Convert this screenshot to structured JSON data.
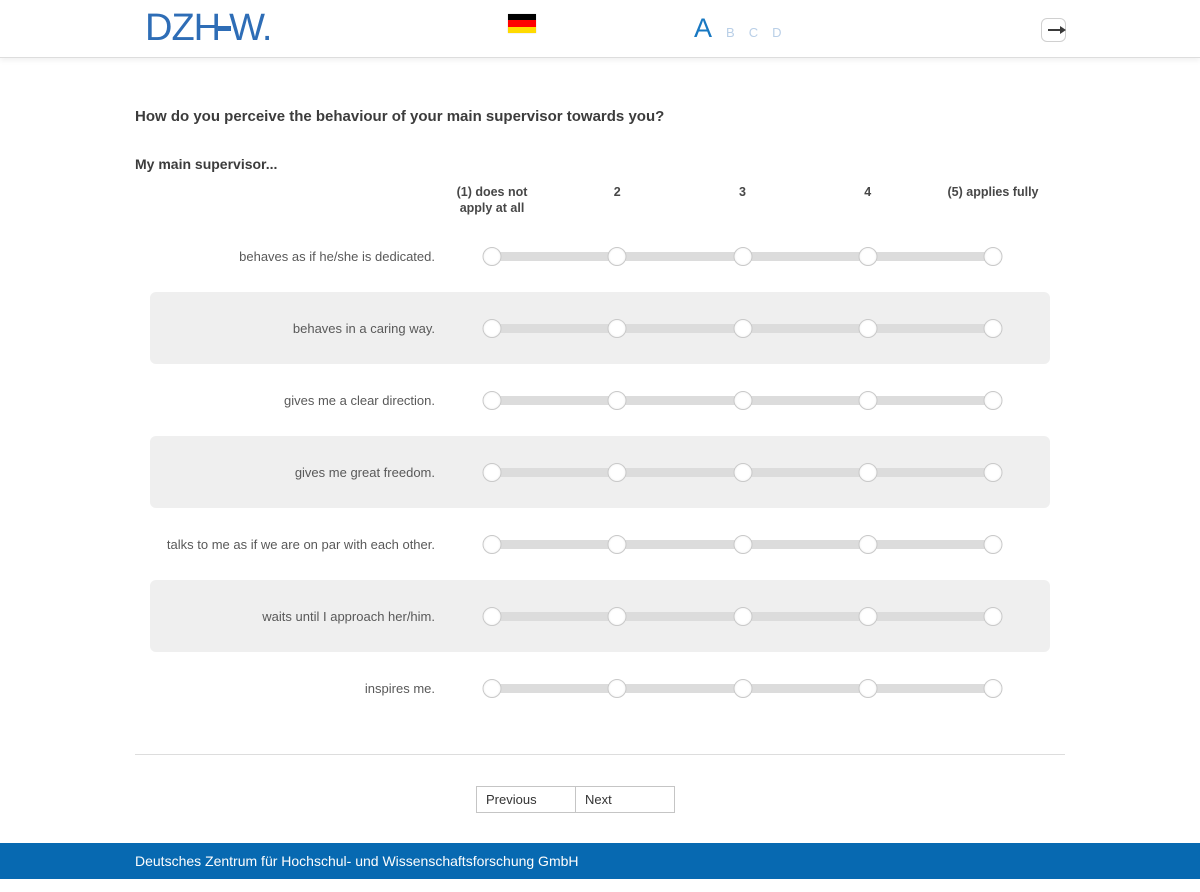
{
  "header": {
    "logo_left": "DZH",
    "logo_right": "W.",
    "flag_name": "german-flag",
    "flag_colors": [
      "#000000",
      "#ff0000",
      "#ffda00"
    ],
    "sections": [
      {
        "label": "A",
        "active": true
      },
      {
        "label": "B",
        "active": false
      },
      {
        "label": "C",
        "active": false
      },
      {
        "label": "D",
        "active": false
      }
    ],
    "exit_icon": "arrow-right-from-box"
  },
  "main": {
    "question": "How do you perceive the behaviour of your main supervisor towards you?",
    "intro": "My main supervisor...",
    "scale_labels": [
      "(1) does not apply at all",
      "2",
      "3",
      "4",
      "(5) applies fully"
    ],
    "items": [
      {
        "label": "behaves as if he/she is dedicated."
      },
      {
        "label": "behaves in a caring way."
      },
      {
        "label": "gives me a clear direction."
      },
      {
        "label": "gives me great freedom."
      },
      {
        "label": "talks to me as if we are on par with each other."
      },
      {
        "label": "waits until I approach her/him."
      },
      {
        "label": "inspires me."
      }
    ],
    "scale_points": 5,
    "selected_values": [
      null,
      null,
      null,
      null,
      null,
      null,
      null
    ]
  },
  "nav": {
    "previous_label": "Previous",
    "next_label": "Next"
  },
  "footer": {
    "text": "Deutsches Zentrum für Hochschul- und Wissenschaftsforschung GmbH"
  },
  "colors": {
    "logo_blue": "#2e6db6",
    "active_section_blue": "#1878c2",
    "inactive_section_blue": "#b9cfe7",
    "footer_blue": "#0769b1",
    "stripe_gray": "#efefef",
    "track_gray": "#dcdcdc"
  }
}
